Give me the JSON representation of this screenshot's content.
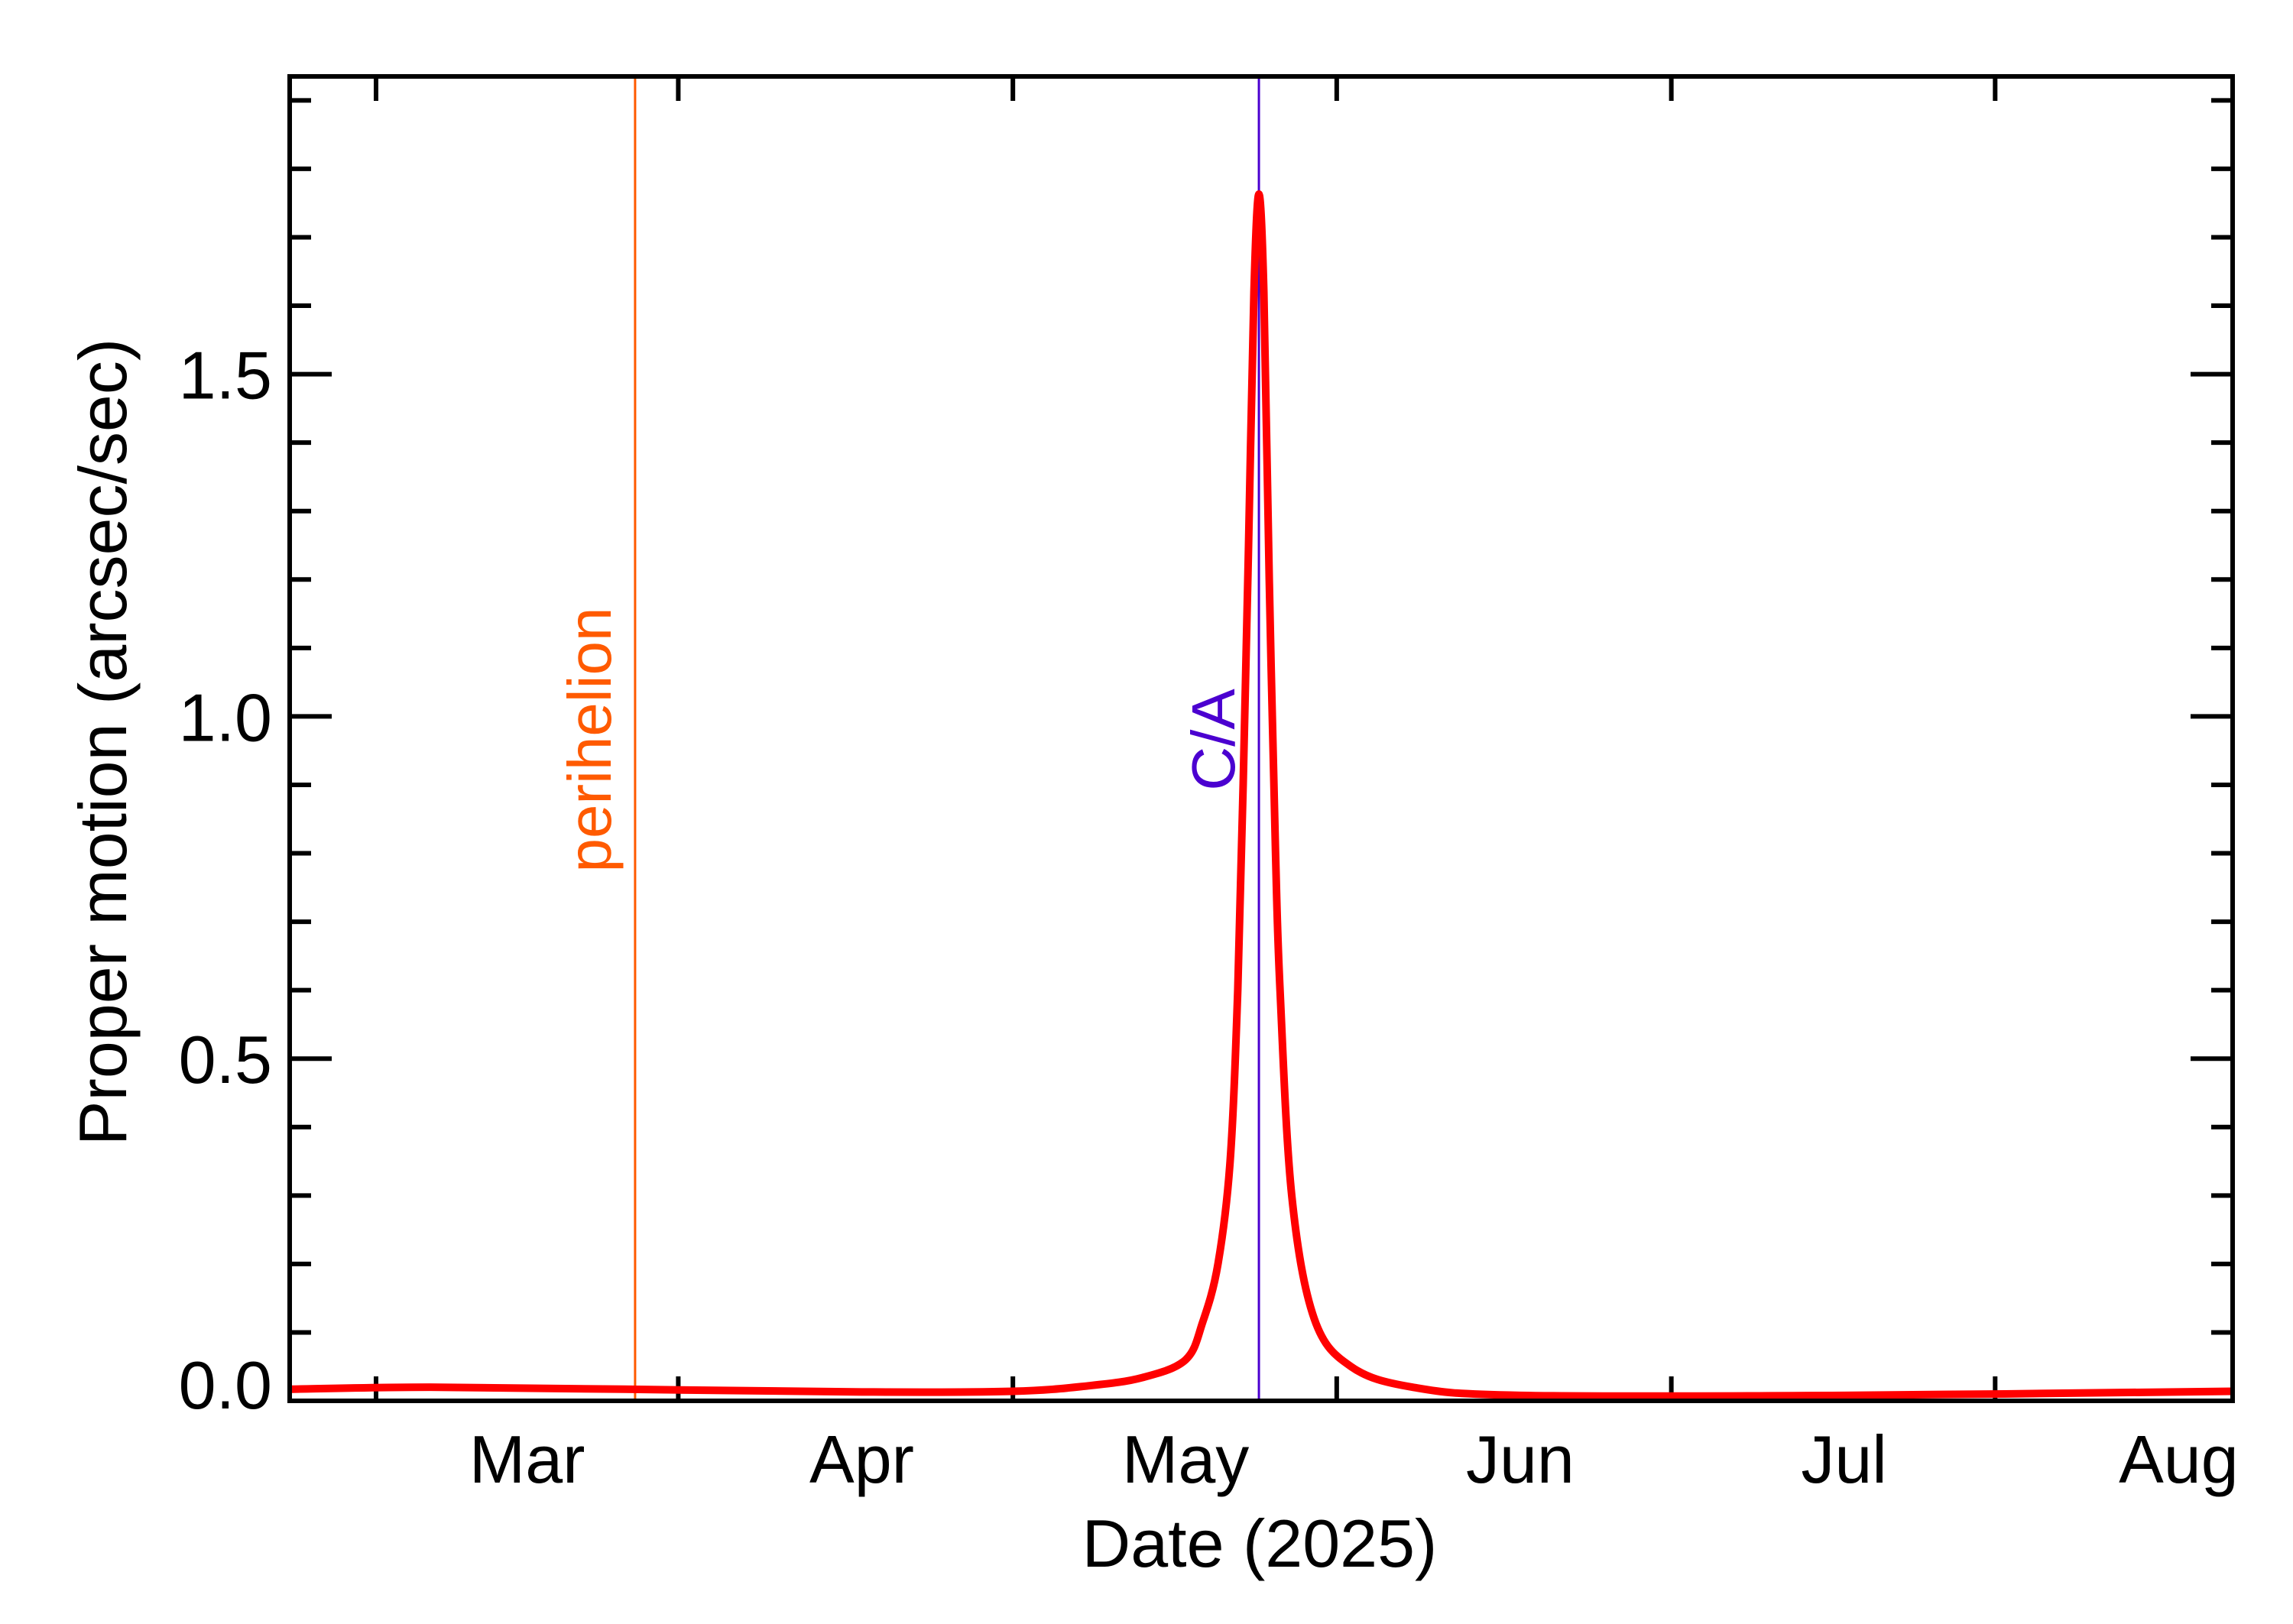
{
  "chart_data": {
    "type": "line",
    "title": "",
    "xlabel": "Date (2025)",
    "ylabel": "Proper motion (arcsec/sec)",
    "xlim": [
      "2025-02-07",
      "2025-08-06"
    ],
    "ylim": [
      0,
      1.935
    ],
    "grid": false,
    "x_tick_labels": [
      {
        "date": "2025-03-01",
        "label": "Mar"
      },
      {
        "date": "2025-04-01",
        "label": "Apr"
      },
      {
        "date": "2025-05-01",
        "label": "May"
      },
      {
        "date": "2025-06-01",
        "label": "Jun"
      },
      {
        "date": "2025-07-01",
        "label": "Jul"
      },
      {
        "date": "2025-08-01",
        "label": "Aug"
      }
    ],
    "x_major_ticks": [
      "2025-02-15",
      "2025-03-15",
      "2025-04-15",
      "2025-05-15",
      "2025-06-15",
      "2025-07-15"
    ],
    "y_tick_labels": [
      {
        "value": 0.0,
        "label": "0.0"
      },
      {
        "value": 0.5,
        "label": "0.5"
      },
      {
        "value": 1.0,
        "label": "1.0"
      },
      {
        "value": 1.5,
        "label": "1.5"
      }
    ],
    "y_minor_step": 0.1,
    "series": [
      {
        "color": "#ff0000",
        "points": [
          [
            "2025-02-07T00:00",
            0.017
          ],
          [
            "2025-02-20T00:00",
            0.02
          ],
          [
            "2025-03-10T00:00",
            0.017
          ],
          [
            "2025-04-01T00:00",
            0.013
          ],
          [
            "2025-04-15T00:00",
            0.014
          ],
          [
            "2025-04-22T00:00",
            0.022
          ],
          [
            "2025-04-27T00:00",
            0.034
          ],
          [
            "2025-05-01T00:00",
            0.06
          ],
          [
            "2025-05-02T14:00",
            0.115
          ],
          [
            "2025-05-04T00:00",
            0.2
          ],
          [
            "2025-05-05T03:00",
            0.35
          ],
          [
            "2025-05-05T20:00",
            0.6
          ],
          [
            "2025-05-06T08:00",
            0.9
          ],
          [
            "2025-05-06T20:00",
            1.25
          ],
          [
            "2025-05-07T08:00",
            1.62
          ],
          [
            "2025-05-07T19:00",
            1.763
          ],
          [
            "2025-05-08T06:00",
            1.62
          ],
          [
            "2025-05-08T18:00",
            1.2
          ],
          [
            "2025-05-09T08:00",
            0.8
          ],
          [
            "2025-05-09T18:00",
            0.6
          ],
          [
            "2025-05-10T20:00",
            0.3
          ],
          [
            "2025-05-12T22:00",
            0.12
          ],
          [
            "2025-05-16T08:00",
            0.05
          ],
          [
            "2025-05-22T00:00",
            0.02
          ],
          [
            "2025-06-01T00:00",
            0.008
          ],
          [
            "2025-07-01T00:00",
            0.008
          ],
          [
            "2025-08-06T00:00",
            0.014
          ]
        ]
      }
    ],
    "annotations": [
      {
        "label": "perihelion",
        "date": "2025-03-11",
        "color": "#ff5a00"
      },
      {
        "label": "C/A",
        "date": "2025-05-07T19:00",
        "color": "#4b00d0"
      }
    ]
  }
}
